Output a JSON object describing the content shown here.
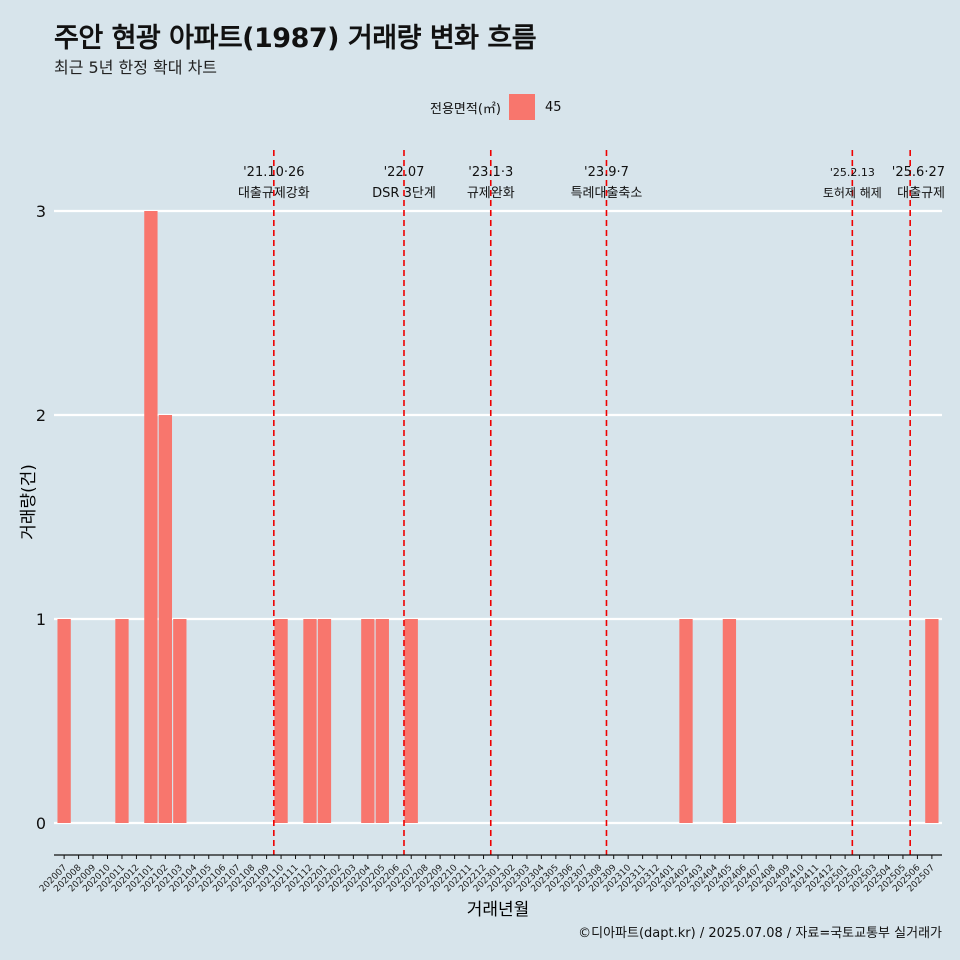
{
  "title": "주안 현광 아파트(1987) 거래량 변화 흐름",
  "subtitle": "최근 5년 한정 확대 차트",
  "legend": {
    "title": "전용면적(㎡)",
    "item": "45",
    "color": "#f8766d"
  },
  "caption": "©디아파트(dapt.kr) / 2025.07.08 / 자료=국토교통부 실거래가",
  "colors": {
    "background": "#d7e4eb",
    "bar": "#f8766d",
    "grid": "#ffffff",
    "event_line": "#ee0000"
  },
  "chart_data": {
    "type": "bar",
    "xlabel": "거래년월",
    "ylabel": "거래량(건)",
    "ylim": [
      0,
      3
    ],
    "yticks": [
      0,
      1,
      2,
      3
    ],
    "grid": true,
    "legend_position": "top",
    "categories": [
      "202007",
      "202008",
      "202009",
      "202010",
      "202011",
      "202012",
      "202101",
      "202102",
      "202103",
      "202104",
      "202105",
      "202106",
      "202107",
      "202108",
      "202109",
      "202110",
      "202111",
      "202112",
      "202201",
      "202202",
      "202203",
      "202204",
      "202205",
      "202206",
      "202207",
      "202208",
      "202209",
      "202210",
      "202211",
      "202212",
      "202301",
      "202302",
      "202303",
      "202304",
      "202305",
      "202306",
      "202307",
      "202308",
      "202309",
      "202310",
      "202311",
      "202312",
      "202401",
      "202402",
      "202403",
      "202404",
      "202405",
      "202406",
      "202407",
      "202408",
      "202409",
      "202410",
      "202411",
      "202412",
      "202501",
      "202502",
      "202503",
      "202504",
      "202505",
      "202506",
      "202507"
    ],
    "series": [
      {
        "name": "45",
        "values": [
          1,
          0,
          0,
          0,
          1,
          0,
          3,
          2,
          1,
          0,
          0,
          0,
          0,
          0,
          0,
          1,
          0,
          1,
          1,
          0,
          0,
          1,
          1,
          0,
          1,
          0,
          0,
          0,
          0,
          0,
          0,
          0,
          0,
          0,
          0,
          0,
          0,
          0,
          0,
          0,
          0,
          0,
          0,
          1,
          0,
          0,
          1,
          0,
          0,
          0,
          0,
          0,
          0,
          0,
          0,
          0,
          0,
          0,
          0,
          0,
          1
        ]
      }
    ],
    "annotations": [
      {
        "x": "202110",
        "date": "'21.10·26",
        "label": "대출규제강화"
      },
      {
        "x": "202207",
        "date": "'22.07",
        "label": "DSR 3단계"
      },
      {
        "x": "202301",
        "date": "'23.1·3",
        "label": "규제완화"
      },
      {
        "x": "202309",
        "date": "'23.9·7",
        "label": "특례대출축소"
      },
      {
        "x": "202502",
        "date": "'25.2.13",
        "label": "토허제 해제"
      },
      {
        "x": "202506",
        "date": "'25.6·27",
        "label": "대출규제"
      }
    ]
  }
}
